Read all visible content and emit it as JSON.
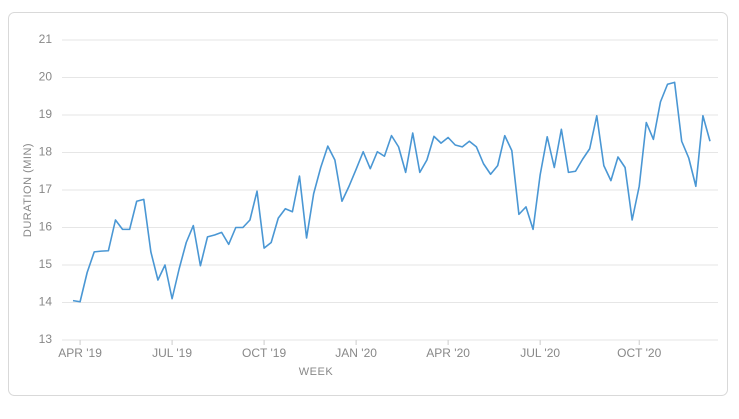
{
  "chart_data": {
    "type": "line",
    "x_label": "WEEK",
    "y_label": "DURATION (MIN)",
    "categories": [
      null,
      "APR '19",
      null,
      null,
      null,
      null,
      null,
      null,
      null,
      null,
      null,
      null,
      null,
      null,
      "JUL '19",
      null,
      null,
      null,
      null,
      null,
      null,
      null,
      null,
      null,
      null,
      null,
      null,
      "OCT '19",
      null,
      null,
      null,
      null,
      null,
      null,
      null,
      null,
      null,
      null,
      null,
      null,
      "JAN '20",
      null,
      null,
      null,
      null,
      null,
      null,
      null,
      null,
      null,
      null,
      null,
      null,
      "APR '20",
      null,
      null,
      null,
      null,
      null,
      null,
      null,
      null,
      null,
      null,
      null,
      null,
      "JUL '20",
      null,
      null,
      null,
      null,
      null,
      null,
      null,
      null,
      null,
      null,
      null,
      null,
      null,
      "OCT '20",
      null,
      null,
      null,
      null,
      null,
      null,
      null,
      null,
      null,
      null
    ],
    "series": [
      {
        "name": "Duration",
        "color": "#4a97d4",
        "values": [
          14.05,
          14.02,
          14.8,
          15.35,
          15.37,
          15.38,
          16.2,
          15.95,
          15.95,
          16.7,
          16.75,
          15.35,
          14.6,
          15.0,
          14.1,
          14.9,
          15.6,
          16.05,
          14.98,
          15.75,
          15.8,
          15.87,
          15.55,
          16.0,
          16.0,
          16.2,
          16.97,
          15.45,
          15.6,
          16.25,
          16.5,
          16.42,
          17.37,
          15.72,
          16.9,
          17.6,
          18.17,
          17.8,
          16.7,
          17.1,
          17.55,
          18.02,
          17.57,
          18.02,
          17.9,
          18.45,
          18.15,
          17.47,
          18.52,
          17.47,
          17.8,
          18.43,
          18.25,
          18.4,
          18.2,
          18.15,
          18.3,
          18.15,
          17.7,
          17.42,
          17.65,
          18.45,
          18.05,
          16.35,
          16.55,
          15.95,
          17.4,
          18.42,
          17.6,
          18.62,
          17.47,
          17.5,
          17.82,
          18.1,
          18.98,
          17.65,
          17.25,
          17.88,
          17.6,
          16.2,
          17.1,
          18.8,
          18.35,
          19.35,
          19.82,
          19.87,
          18.3,
          17.85,
          17.1,
          18.98,
          18.3
        ]
      }
    ],
    "ylim": [
      13,
      21
    ],
    "yticks": [
      13,
      14,
      15,
      16,
      17,
      18,
      19,
      20,
      21
    ],
    "grid": true
  }
}
